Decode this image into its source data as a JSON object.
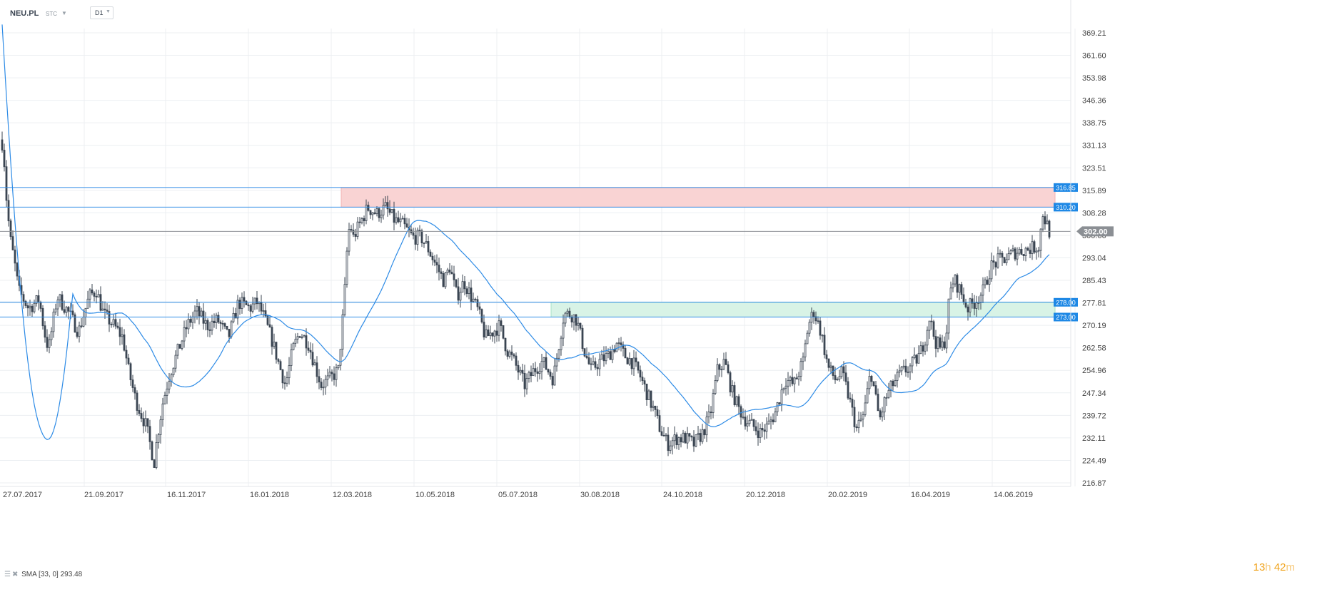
{
  "header": {
    "symbol": "NEU.PL",
    "market": "STC",
    "interval": "D1"
  },
  "indicator": {
    "icon": "bars-icon",
    "close_icon": "close-icon",
    "label": "SMA [33, 0] 293.48"
  },
  "timer": {
    "hours": "13",
    "h_unit": "h",
    "minutes": "42",
    "m_unit": "m"
  },
  "colors": {
    "level_line": "#2d8be6",
    "level_badge": "#1e88e5",
    "resistance_zone": "#f9d3d3",
    "support_zone": "#d8f3e6",
    "sma": "#2d8be6",
    "candle_down": "#3b4552",
    "current_price_badge": "#8b8f94"
  },
  "chart_data": {
    "type": "candlestick",
    "symbol": "NEU.PL",
    "interval": "D1",
    "y_ticks": [
      "369.21",
      "361.60",
      "353.98",
      "346.36",
      "338.75",
      "331.13",
      "323.51",
      "315.89",
      "308.28",
      "300.66",
      "293.04",
      "285.43",
      "277.81",
      "270.19",
      "262.58",
      "254.96",
      "247.34",
      "239.72",
      "232.11",
      "224.49",
      "216.87"
    ],
    "x_ticks": [
      "27.07.2017",
      "21.09.2017",
      "16.11.2017",
      "16.01.2018",
      "12.03.2018",
      "10.05.2018",
      "05.07.2018",
      "30.08.2018",
      "24.10.2018",
      "20.12.2018",
      "20.02.2019",
      "16.04.2019",
      "14.06.2019"
    ],
    "ylim": [
      216.87,
      372.5
    ],
    "levels": [
      {
        "label": "316.85",
        "value": 316.85
      },
      {
        "label": "310.20",
        "value": 310.2
      },
      {
        "label": "278.00",
        "value": 278.0
      },
      {
        "label": "273.00",
        "value": 273.0
      }
    ],
    "zones": [
      {
        "kind": "resistance",
        "from": 310.2,
        "to": 316.85,
        "start": "12.03.2018"
      },
      {
        "kind": "support",
        "from": 273.0,
        "to": 278.0,
        "start": "30.08.2018"
      }
    ],
    "current_price": {
      "label": "302.00",
      "value": 302.0
    },
    "sma": {
      "name": "SMA [33, 0]",
      "last": 293.48
    },
    "price_path": [
      [
        0,
        335
      ],
      [
        5,
        330
      ],
      [
        8,
        316
      ],
      [
        14,
        300
      ],
      [
        20,
        292
      ],
      [
        26,
        282
      ],
      [
        40,
        276
      ],
      [
        55,
        279
      ],
      [
        62,
        268
      ],
      [
        68,
        262
      ],
      [
        80,
        280
      ],
      [
        95,
        275
      ],
      [
        110,
        268
      ],
      [
        125,
        280
      ],
      [
        135,
        282
      ],
      [
        145,
        274
      ],
      [
        160,
        270
      ],
      [
        172,
        266
      ],
      [
        180,
        255
      ],
      [
        190,
        245
      ],
      [
        198,
        240
      ],
      [
        205,
        236
      ],
      [
        212,
        228
      ],
      [
        216,
        224
      ],
      [
        220,
        232
      ],
      [
        228,
        244
      ],
      [
        238,
        254
      ],
      [
        250,
        262
      ],
      [
        262,
        270
      ],
      [
        275,
        275
      ],
      [
        290,
        270
      ],
      [
        305,
        272
      ],
      [
        320,
        266
      ],
      [
        334,
        278
      ],
      [
        350,
        276
      ],
      [
        360,
        278
      ],
      [
        368,
        274
      ],
      [
        380,
        266
      ],
      [
        392,
        256
      ],
      [
        400,
        250
      ],
      [
        410,
        262
      ],
      [
        420,
        268
      ],
      [
        432,
        264
      ],
      [
        442,
        256
      ],
      [
        450,
        250
      ],
      [
        462,
        252
      ],
      [
        474,
        255
      ],
      [
        482,
        278
      ],
      [
        486,
        295
      ],
      [
        490,
        305
      ],
      [
        495,
        300
      ],
      [
        505,
        305
      ],
      [
        515,
        310
      ],
      [
        528,
        308
      ],
      [
        540,
        310
      ],
      [
        552,
        306
      ],
      [
        565,
        304
      ],
      [
        578,
        300
      ],
      [
        590,
        300
      ],
      [
        600,
        296
      ],
      [
        612,
        290
      ],
      [
        622,
        285
      ],
      [
        630,
        290
      ],
      [
        640,
        280
      ],
      [
        650,
        285
      ],
      [
        660,
        280
      ],
      [
        670,
        275
      ],
      [
        680,
        266
      ],
      [
        690,
        268
      ],
      [
        700,
        270
      ],
      [
        710,
        262
      ],
      [
        720,
        258
      ],
      [
        735,
        250
      ],
      [
        748,
        255
      ],
      [
        760,
        258
      ],
      [
        775,
        252
      ],
      [
        790,
        274
      ],
      [
        800,
        274
      ],
      [
        808,
        272
      ],
      [
        818,
        262
      ],
      [
        828,
        255
      ],
      [
        840,
        258
      ],
      [
        852,
        260
      ],
      [
        864,
        264
      ],
      [
        875,
        260
      ],
      [
        885,
        258
      ],
      [
        895,
        254
      ],
      [
        905,
        248
      ],
      [
        915,
        242
      ],
      [
        925,
        235
      ],
      [
        935,
        230
      ],
      [
        948,
        232
      ],
      [
        960,
        232
      ],
      [
        972,
        230
      ],
      [
        985,
        234
      ],
      [
        995,
        240
      ],
      [
        1005,
        255
      ],
      [
        1015,
        258
      ],
      [
        1025,
        248
      ],
      [
        1035,
        242
      ],
      [
        1045,
        238
      ],
      [
        1055,
        236
      ],
      [
        1065,
        234
      ],
      [
        1075,
        236
      ],
      [
        1085,
        240
      ],
      [
        1100,
        252
      ],
      [
        1112,
        250
      ],
      [
        1125,
        258
      ],
      [
        1132,
        270
      ],
      [
        1140,
        275
      ],
      [
        1150,
        268
      ],
      [
        1160,
        256
      ],
      [
        1170,
        252
      ],
      [
        1180,
        254
      ],
      [
        1190,
        245
      ],
      [
        1200,
        235
      ],
      [
        1210,
        240
      ],
      [
        1220,
        255
      ],
      [
        1232,
        238
      ],
      [
        1240,
        245
      ],
      [
        1250,
        250
      ],
      [
        1262,
        254
      ],
      [
        1275,
        256
      ],
      [
        1288,
        260
      ],
      [
        1296,
        266
      ],
      [
        1302,
        273
      ],
      [
        1310,
        265
      ],
      [
        1318,
        262
      ],
      [
        1325,
        266
      ],
      [
        1330,
        280
      ],
      [
        1336,
        286
      ],
      [
        1345,
        282
      ],
      [
        1355,
        276
      ],
      [
        1365,
        278
      ],
      [
        1378,
        282
      ],
      [
        1388,
        290
      ],
      [
        1398,
        292
      ],
      [
        1410,
        293
      ],
      [
        1422,
        295
      ],
      [
        1440,
        296
      ],
      [
        1455,
        297
      ],
      [
        1461,
        308
      ],
      [
        1464,
        306
      ],
      [
        1467,
        304
      ],
      [
        1470,
        302
      ]
    ]
  }
}
